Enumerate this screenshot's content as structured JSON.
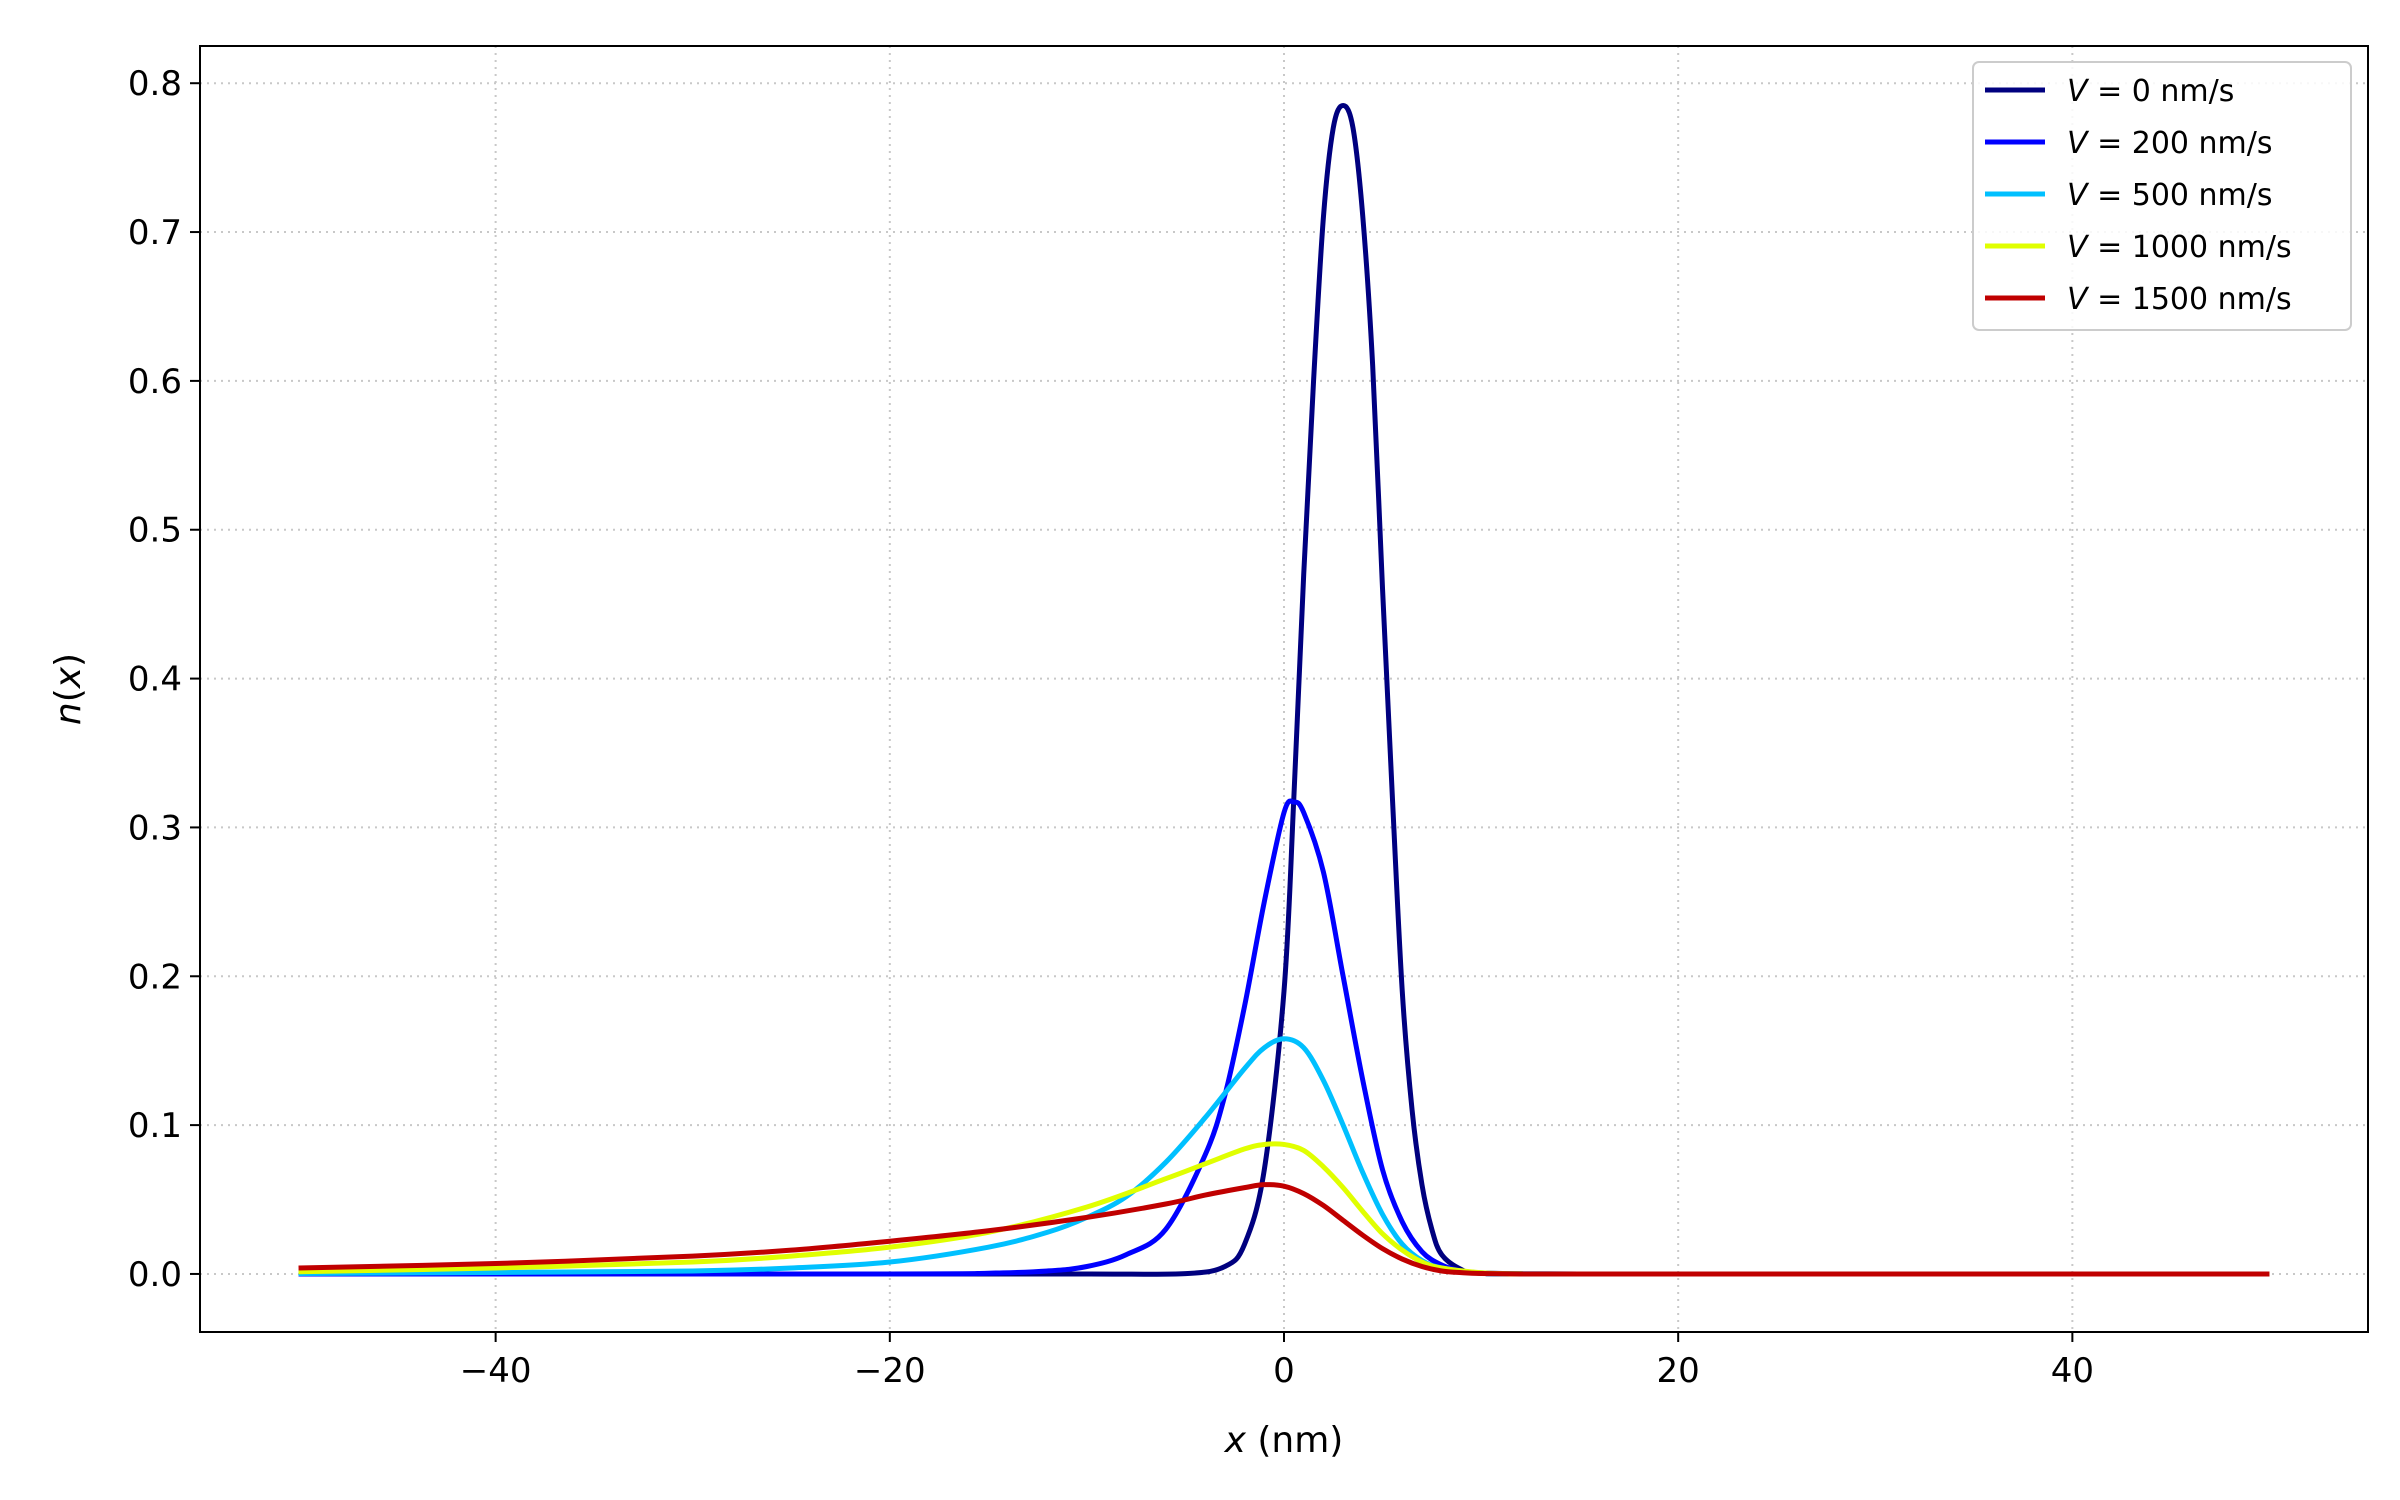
{
  "chart_data": {
    "type": "line",
    "xlabel_var": "x",
    "xlabel_unit": " (nm)",
    "ylabel_fn": "n",
    "ylabel_var": "x",
    "xlim": [
      -55,
      55
    ],
    "ylim": [
      -0.039,
      0.825
    ],
    "xticks": [
      -40,
      -20,
      0,
      20,
      40
    ],
    "xtick_labels": [
      "−40",
      "−20",
      "0",
      "20",
      "40"
    ],
    "yticks": [
      0.0,
      0.1,
      0.2,
      0.3,
      0.4,
      0.5,
      0.6,
      0.7,
      0.8
    ],
    "ytick_labels": [
      "0.0",
      "0.1",
      "0.2",
      "0.3",
      "0.4",
      "0.5",
      "0.6",
      "0.7",
      "0.8"
    ],
    "grid": true,
    "legend_position": "top-right",
    "legend_var": "V",
    "legend_eq": " = ",
    "series": [
      {
        "name": "0 nm/s",
        "color": "#00007f",
        "x": [
          -50,
          -20,
          -10,
          -5,
          -3,
          -2,
          -1,
          0,
          0.5,
          1,
          1.5,
          2,
          2.5,
          3,
          3.5,
          4,
          4.5,
          5,
          5.5,
          6,
          6.5,
          7,
          7.5,
          8,
          9,
          10,
          15,
          50
        ],
        "y": [
          0,
          0,
          0,
          0.0002,
          0.005,
          0.02,
          0.07,
          0.19,
          0.32,
          0.47,
          0.6,
          0.71,
          0.77,
          0.785,
          0.77,
          0.71,
          0.61,
          0.46,
          0.32,
          0.19,
          0.11,
          0.06,
          0.03,
          0.013,
          0.003,
          0.0005,
          0,
          0
        ]
      },
      {
        "name": "200 nm/s",
        "color": "#0000ff",
        "x": [
          -50,
          -20,
          -15,
          -12,
          -10,
          -8,
          -6,
          -4,
          -3,
          -2,
          -1,
          0,
          0.5,
          1,
          2,
          3,
          4,
          5,
          6,
          7,
          8,
          9,
          10,
          12,
          15,
          50
        ],
        "y": [
          0,
          0,
          0.0005,
          0.002,
          0.005,
          0.013,
          0.03,
          0.08,
          0.12,
          0.18,
          0.25,
          0.31,
          0.317,
          0.31,
          0.27,
          0.2,
          0.13,
          0.07,
          0.035,
          0.015,
          0.006,
          0.002,
          0.0007,
          0.0001,
          0,
          0
        ]
      },
      {
        "name": "500 nm/s",
        "color": "#00c0ff",
        "x": [
          -50,
          -40,
          -30,
          -25,
          -20,
          -15,
          -12,
          -10,
          -8,
          -6,
          -4,
          -2,
          -1,
          0,
          1,
          2,
          3,
          4,
          5,
          6,
          7,
          8,
          10,
          12,
          15,
          50
        ],
        "y": [
          0.0003,
          0.001,
          0.002,
          0.004,
          0.008,
          0.018,
          0.028,
          0.038,
          0.052,
          0.075,
          0.105,
          0.138,
          0.152,
          0.158,
          0.152,
          0.13,
          0.1,
          0.068,
          0.04,
          0.02,
          0.009,
          0.004,
          0.0005,
          0.0001,
          0,
          0
        ]
      },
      {
        "name": "1000 nm/s",
        "color": "#e0ff00",
        "x": [
          -50,
          -40,
          -30,
          -25,
          -20,
          -15,
          -10,
          -6,
          -4,
          -2,
          -1,
          0,
          1,
          2,
          3,
          4,
          5,
          6,
          7,
          8,
          10,
          12,
          15,
          50
        ],
        "y": [
          0.0015,
          0.004,
          0.008,
          0.012,
          0.018,
          0.028,
          0.045,
          0.064,
          0.074,
          0.084,
          0.087,
          0.087,
          0.083,
          0.072,
          0.058,
          0.042,
          0.027,
          0.016,
          0.008,
          0.004,
          0.0008,
          0.0001,
          0,
          0
        ]
      },
      {
        "name": "1500 nm/s",
        "color": "#c00000",
        "x": [
          -50,
          -40,
          -30,
          -25,
          -20,
          -15,
          -10,
          -6,
          -4,
          -2,
          -1,
          0,
          1,
          2,
          3,
          4,
          5,
          6,
          7,
          8,
          9,
          10,
          12,
          15,
          50
        ],
        "y": [
          0.004,
          0.007,
          0.012,
          0.016,
          0.022,
          0.029,
          0.038,
          0.047,
          0.053,
          0.058,
          0.06,
          0.059,
          0.054,
          0.046,
          0.036,
          0.026,
          0.017,
          0.01,
          0.005,
          0.002,
          0.0009,
          0.0003,
          0,
          0,
          0
        ]
      }
    ]
  }
}
